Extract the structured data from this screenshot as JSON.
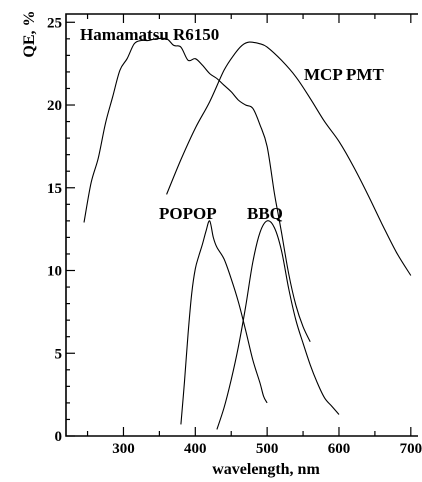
{
  "chart_data": {
    "type": "line",
    "xlabel": "wavelength, nm",
    "ylabel": "QE, %",
    "xlim": [
      220,
      710
    ],
    "ylim": [
      0,
      25.5
    ],
    "grid": false,
    "x_ticks": [
      "300",
      "400",
      "500",
      "600",
      "700"
    ],
    "y_ticks": [
      "0",
      "5",
      "10",
      "15",
      "20",
      "25"
    ],
    "annotations": [
      "Hamamatsu R6150",
      "MCP PMT",
      "POPOP",
      "BBQ"
    ],
    "series": [
      {
        "name": "Hamamatsu R6150",
        "x": [
          245,
          255,
          265,
          275,
          285,
          295,
          305,
          315,
          325,
          335,
          345,
          360,
          370,
          380,
          390,
          400,
          410,
          420,
          430,
          440,
          450,
          460,
          470,
          480,
          490,
          500,
          510,
          515,
          520,
          530,
          540,
          550,
          560
        ],
        "y": [
          12.9,
          15.3,
          16.8,
          18.9,
          20.5,
          22.1,
          22.8,
          23.7,
          23.9,
          23.9,
          24.0,
          24.0,
          23.6,
          23.5,
          22.7,
          22.8,
          22.4,
          21.9,
          21.6,
          21.2,
          20.8,
          20.3,
          20.0,
          19.8,
          18.8,
          17.5,
          14.7,
          13.5,
          12.3,
          9.8,
          7.9,
          6.6,
          5.7
        ]
      },
      {
        "name": "MCP PMT",
        "x": [
          360,
          380,
          400,
          420,
          440,
          455,
          465,
          475,
          490,
          500,
          520,
          540,
          560,
          580,
          600,
          620,
          640,
          660,
          680,
          700
        ],
        "y": [
          14.6,
          16.7,
          18.6,
          20.2,
          22.1,
          23.1,
          23.6,
          23.8,
          23.7,
          23.5,
          22.7,
          21.7,
          20.4,
          19.0,
          17.8,
          16.3,
          14.6,
          12.8,
          11.1,
          9.7
        ]
      },
      {
        "name": "POPOP",
        "x": [
          380,
          385,
          390,
          395,
          400,
          405,
          410,
          415,
          420,
          425,
          430,
          440,
          450,
          460,
          470,
          480,
          490,
          495,
          500
        ],
        "y": [
          0.7,
          3.3,
          6.2,
          8.6,
          10.1,
          10.9,
          11.6,
          12.4,
          13.0,
          12.0,
          11.4,
          10.7,
          9.5,
          8.1,
          6.4,
          4.6,
          3.2,
          2.4,
          2.0
        ]
      },
      {
        "name": "BBQ",
        "x": [
          430,
          440,
          450,
          460,
          470,
          480,
          490,
          500,
          510,
          520,
          530,
          540,
          550,
          560,
          570,
          580,
          590,
          600
        ],
        "y": [
          0.4,
          1.7,
          3.4,
          5.4,
          7.8,
          10.5,
          12.3,
          13.0,
          12.6,
          11.2,
          8.9,
          7.0,
          5.6,
          4.3,
          3.2,
          2.3,
          1.8,
          1.3
        ]
      }
    ]
  }
}
